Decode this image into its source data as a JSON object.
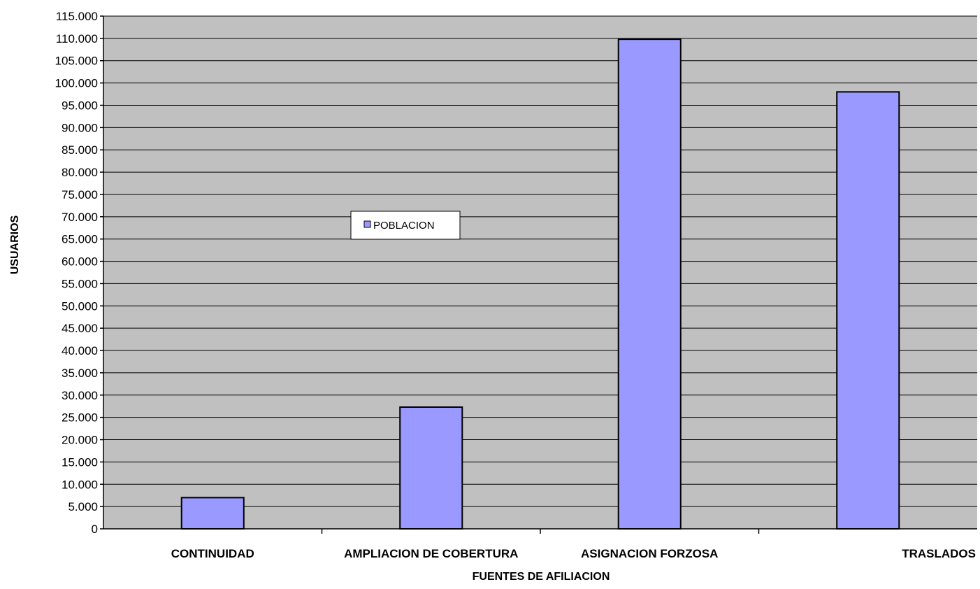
{
  "chart_data": {
    "type": "bar",
    "title": "",
    "xlabel": "FUENTES DE AFILIACION",
    "ylabel": "USUARIOS",
    "categories": [
      "CONTINUIDAD",
      "AMPLIACION DE COBERTURA",
      "ASIGNACION FORZOSA",
      "TRASLADOS"
    ],
    "series": [
      {
        "name": "POBLACION",
        "values": [
          7000,
          27300,
          109800,
          98000
        ]
      }
    ],
    "ylim": [
      0,
      115000
    ],
    "yticks": [
      "0",
      "5.000",
      "10.000",
      "15.000",
      "20.000",
      "25.000",
      "30.000",
      "35.000",
      "40.000",
      "45.000",
      "50.000",
      "55.000",
      "60.000",
      "65.000",
      "70.000",
      "75.000",
      "80.000",
      "85.000",
      "90.000",
      "95.000",
      "100.000",
      "105.000",
      "110.000",
      "115.000"
    ],
    "grid": true,
    "legend_position": "center",
    "colors": {
      "plot_background": "#c0c0c0",
      "bar_fill": "#9999ff",
      "bar_stroke": "#000000",
      "grid": "#000000"
    }
  }
}
